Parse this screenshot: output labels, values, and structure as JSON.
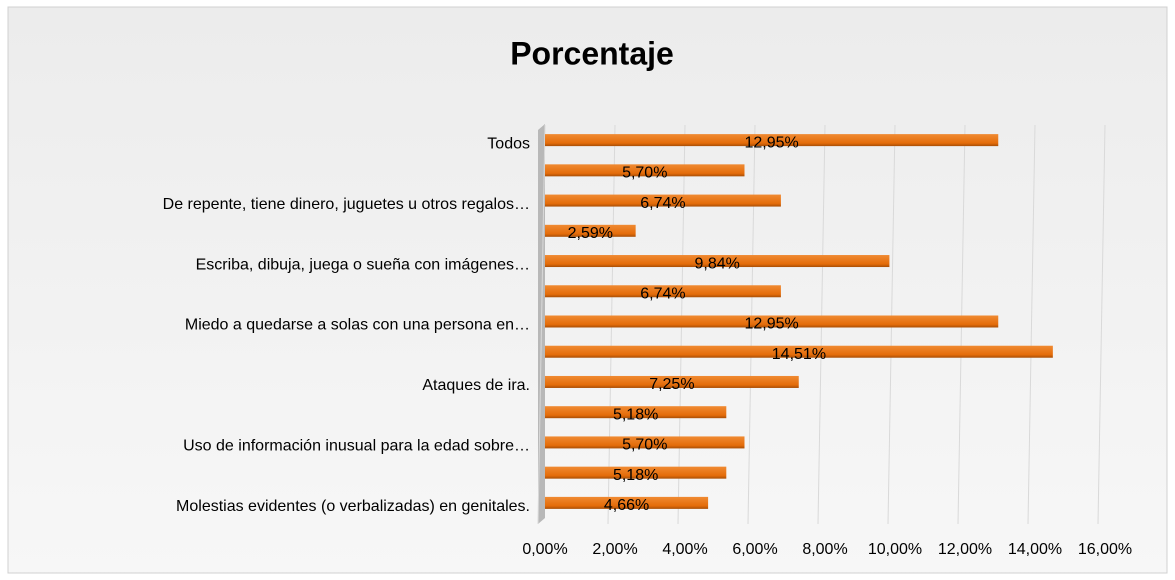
{
  "chart_data": {
    "type": "bar",
    "orientation": "horizontal",
    "title": "Porcentaje",
    "categories": [
      "Todos",
      null,
      "De repente, tiene dinero, juguetes u otros regalos…",
      null,
      "Escriba, dibuja, juega o sueña con imágenes…",
      null,
      "Miedo a quedarse a solas con una persona en…",
      null,
      "Ataques de ira.",
      null,
      "Uso de información inusual para la edad sobre…",
      null,
      "Molestias evidentes (o verbalizadas) en genitales."
    ],
    "values": [
      12.95,
      5.7,
      6.74,
      2.59,
      9.84,
      6.74,
      12.95,
      14.51,
      7.25,
      5.18,
      5.7,
      5.18,
      4.66
    ],
    "value_labels": [
      "12,95%",
      "5,70%",
      "6,74%",
      "2,59%",
      "9,84%",
      "6,74%",
      "12,95%",
      "14,51%",
      "7,25%",
      "5,18%",
      "5,70%",
      "5,18%",
      "4,66%"
    ],
    "color": "#e46c0a",
    "xlim": [
      0,
      16
    ],
    "xticks": [
      {
        "value": 0,
        "label": "0,00%"
      },
      {
        "value": 2,
        "label": "2,00%"
      },
      {
        "value": 4,
        "label": "4,00%"
      },
      {
        "value": 6,
        "label": "6,00%"
      },
      {
        "value": 8,
        "label": "8,00%"
      },
      {
        "value": 10,
        "label": "10,00%"
      },
      {
        "value": 12,
        "label": "12,00%"
      },
      {
        "value": 14,
        "label": "14,00%"
      },
      {
        "value": 16,
        "label": "16,00%"
      }
    ],
    "grid": true
  }
}
